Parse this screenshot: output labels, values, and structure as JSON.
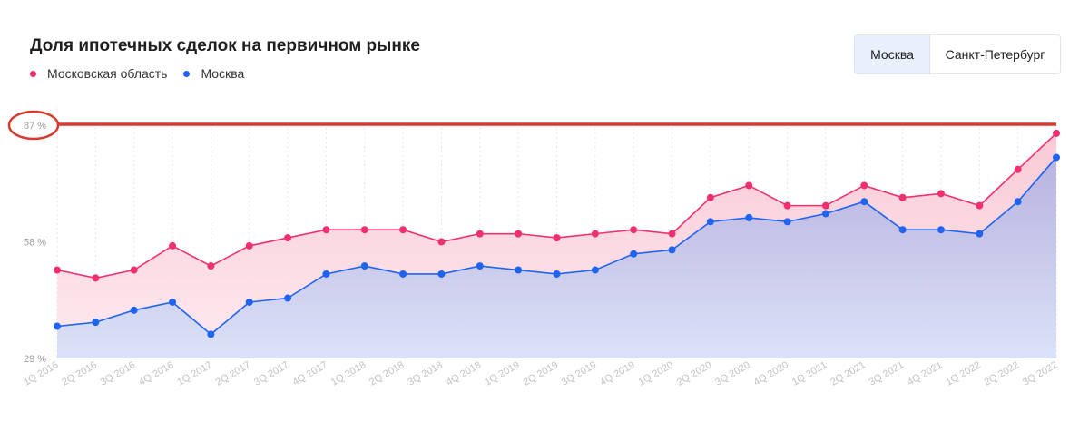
{
  "title": "Доля ипотечных сделок на первичном рынке",
  "toggle": {
    "active": "Москва",
    "inactive": "Санкт-Петербург"
  },
  "colors": {
    "pink": "#f0306e",
    "blue": "#1e64f0",
    "pinkFill": "#fbd6de",
    "blueFill": "#c9c6ea",
    "annotation": "#d93a2e",
    "grid": "#e6e6e6"
  },
  "chart_data": {
    "type": "area",
    "title": "Доля ипотечных сделок на первичном рынке",
    "x": [
      "1Q 2016",
      "2Q 2016",
      "3Q 2016",
      "4Q 2016",
      "1Q 2017",
      "2Q 2017",
      "3Q 2017",
      "4Q 2017",
      "1Q 2018",
      "2Q 2018",
      "3Q 2018",
      "4Q 2018",
      "1Q 2019",
      "2Q 2019",
      "3Q 2019",
      "4Q 2019",
      "1Q 2020",
      "2Q 2020",
      "3Q 2020",
      "4Q 2020",
      "1Q 2021",
      "2Q 2021",
      "3Q 2021",
      "4Q 2021",
      "1Q 2022",
      "2Q 2022",
      "3Q 2022"
    ],
    "yticks": [
      29,
      58,
      87
    ],
    "ytick_labels": [
      "29 %",
      "58 %",
      "87 %"
    ],
    "ylim": [
      29,
      87
    ],
    "grid": "vertical dotted",
    "legend": "top-left",
    "series": [
      {
        "name": "Московская область",
        "color": "#f0306e",
        "values": [
          51.0,
          49.0,
          51.0,
          57.0,
          52.0,
          57.0,
          59.0,
          61.0,
          61.0,
          61.0,
          58.0,
          60.0,
          60.0,
          59.0,
          60.0,
          61.0,
          60.0,
          69.0,
          72.0,
          67.0,
          67.0,
          72.0,
          69.0,
          70.0,
          67.0,
          76.0,
          85.0
        ]
      },
      {
        "name": "Москва",
        "color": "#1e64f0",
        "values": [
          37.0,
          38.0,
          41.0,
          43.0,
          35.0,
          43.0,
          44.0,
          50.0,
          52.0,
          50.0,
          50.0,
          52.0,
          51.0,
          50.0,
          51.0,
          55.0,
          56.0,
          63.0,
          64.0,
          63.0,
          65.0,
          68.0,
          61.0,
          61.0,
          60.0,
          68.0,
          79.0
        ]
      }
    ],
    "annotation": {
      "type": "horizontal-line",
      "y": 87,
      "label_circled": "87 %"
    }
  }
}
